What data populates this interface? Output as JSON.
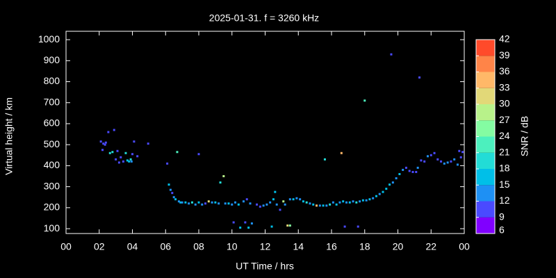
{
  "chart_data": {
    "type": "scatter",
    "title": "2025-01-31. f = 3260 kHz",
    "x_label": "UT Time / hrs",
    "y_label": "Virtual height / km",
    "colorbar_label": "SNR / dB",
    "xlim": [
      0,
      24
    ],
    "ylim": [
      77,
      1040
    ],
    "xticks": [
      {
        "value": 0,
        "label": "00"
      },
      {
        "value": 2,
        "label": "02"
      },
      {
        "value": 4,
        "label": "04"
      },
      {
        "value": 6,
        "label": "06"
      },
      {
        "value": 8,
        "label": "08"
      },
      10,
      12,
      14,
      16,
      18,
      20,
      22,
      {
        "value": 24,
        "label": "00"
      }
    ],
    "yticks": [
      100,
      200,
      300,
      400,
      500,
      600,
      700,
      800,
      900,
      1000
    ],
    "colorbar_ticks": [
      6,
      9,
      12,
      15,
      18,
      21,
      24,
      27,
      30,
      33,
      36,
      39,
      42
    ],
    "colormap": [
      "#8000ff",
      "#4a4aff",
      "#1e90f4",
      "#00bfe8",
      "#22dcd6",
      "#4cf0be",
      "#84fca2",
      "#b8f28a",
      "#e2d878",
      "#ffb868",
      "#ff8448",
      "#ff4a2a",
      "#ff1010"
    ],
    "x": [
      2.1,
      2.2,
      2.25,
      2.35,
      2.4,
      2.55,
      2.65,
      2.8,
      2.9,
      3.0,
      3.1,
      3.2,
      3.3,
      3.45,
      3.6,
      3.7,
      3.8,
      3.9,
      3.95,
      4.0,
      4.1,
      4.3,
      4.95,
      6.1,
      6.2,
      6.3,
      6.4,
      6.5,
      6.6,
      6.7,
      6.8,
      6.9,
      7.0,
      7.2,
      7.4,
      7.6,
      7.8,
      8.0,
      8.0,
      8.2,
      8.4,
      8.6,
      8.8,
      9.0,
      9.2,
      9.3,
      9.5,
      9.6,
      9.8,
      10.0,
      10.1,
      10.2,
      10.4,
      10.5,
      10.7,
      10.8,
      10.9,
      11.0,
      11.1,
      11.2,
      11.5,
      11.7,
      11.9,
      12.1,
      12.3,
      12.4,
      12.5,
      12.6,
      12.7,
      12.9,
      13.1,
      13.2,
      13.35,
      13.5,
      13.5,
      13.7,
      13.9,
      14.1,
      14.3,
      14.5,
      14.7,
      14.9,
      15.1,
      15.3,
      15.5,
      15.6,
      15.7,
      15.9,
      16.1,
      16.3,
      16.5,
      16.6,
      16.7,
      16.8,
      16.9,
      17.1,
      17.3,
      17.5,
      17.6,
      17.7,
      17.9,
      18.0,
      18.1,
      18.3,
      18.5,
      18.7,
      18.9,
      19.1,
      19.3,
      19.5,
      19.6,
      19.7,
      19.9,
      20.1,
      20.3,
      20.5,
      20.7,
      20.9,
      21.1,
      21.2,
      21.3,
      21.4,
      21.6,
      21.8,
      22.0,
      22.2,
      22.4,
      22.6,
      22.8,
      23.0,
      23.2,
      23.4,
      23.6,
      23.7,
      23.8,
      23.9
    ],
    "y": [
      515,
      475,
      505,
      500,
      510,
      560,
      460,
      465,
      570,
      430,
      470,
      415,
      440,
      420,
      460,
      425,
      420,
      430,
      420,
      455,
      515,
      445,
      505,
      410,
      310,
      285,
      270,
      250,
      240,
      465,
      230,
      225,
      225,
      225,
      220,
      225,
      215,
      455,
      225,
      215,
      220,
      230,
      225,
      225,
      220,
      320,
      350,
      220,
      220,
      215,
      130,
      225,
      215,
      105,
      230,
      130,
      240,
      105,
      220,
      125,
      215,
      205,
      210,
      215,
      225,
      110,
      240,
      275,
      215,
      190,
      230,
      215,
      115,
      115,
      240,
      240,
      245,
      240,
      230,
      225,
      220,
      215,
      210,
      210,
      210,
      430,
      210,
      215,
      225,
      215,
      225,
      460,
      230,
      110,
      225,
      225,
      230,
      225,
      110,
      230,
      235,
      710,
      235,
      240,
      245,
      255,
      265,
      275,
      290,
      310,
      930,
      320,
      340,
      360,
      380,
      390,
      375,
      370,
      370,
      390,
      820,
      425,
      420,
      445,
      450,
      460,
      430,
      420,
      410,
      415,
      420,
      430,
      405,
      470,
      440,
      465
    ],
    "snr": [
      12,
      12,
      12,
      12,
      12,
      12,
      21,
      21,
      12,
      12,
      12,
      12,
      12,
      12,
      21,
      18,
      18,
      21,
      15,
      12,
      12,
      12,
      12,
      12,
      18,
      15,
      12,
      15,
      18,
      24,
      15,
      18,
      15,
      18,
      15,
      21,
      15,
      12,
      18,
      15,
      12,
      33,
      15,
      18,
      15,
      21,
      30,
      15,
      18,
      15,
      12,
      15,
      18,
      18,
      15,
      12,
      12,
      18,
      15,
      15,
      12,
      12,
      15,
      15,
      15,
      18,
      18,
      18,
      15,
      12,
      30,
      15,
      33,
      27,
      15,
      18,
      15,
      15,
      18,
      21,
      15,
      18,
      36,
      15,
      18,
      21,
      15,
      21,
      15,
      18,
      15,
      36,
      18,
      12,
      15,
      18,
      15,
      21,
      12,
      15,
      18,
      24,
      15,
      18,
      15,
      18,
      15,
      18,
      18,
      18,
      12,
      15,
      15,
      18,
      15,
      12,
      12,
      12,
      12,
      15,
      12,
      12,
      12,
      15,
      12,
      12,
      12,
      12,
      15,
      15,
      12,
      15,
      15,
      12,
      12,
      12
    ]
  }
}
